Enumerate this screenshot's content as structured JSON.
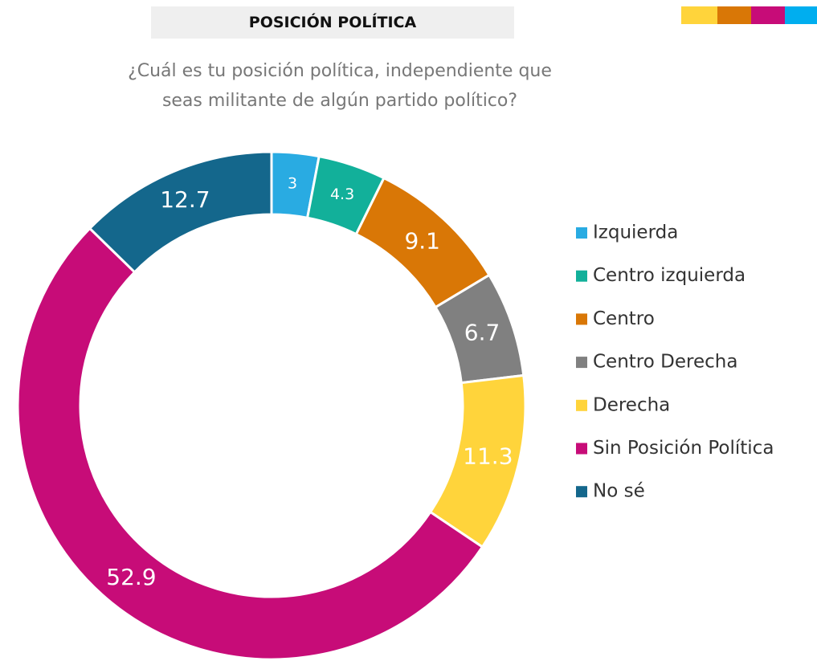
{
  "chart_data": {
    "type": "pie",
    "title": "POSICIÓN POLÍTICA",
    "subtitle": "¿Cuál es tu posición política, independiente que seas militante de algún partido político?",
    "categories": [
      "Izquierda",
      "Centro izquierda",
      "Centro",
      "Centro Derecha",
      "Derecha",
      "Sin Posición Política",
      "No sé"
    ],
    "values": [
      3,
      4.3,
      9.1,
      6.7,
      11.3,
      52.9,
      12.7
    ],
    "colors": [
      "#29abe2",
      "#12b09a",
      "#d97706",
      "#808080",
      "#ffd43b",
      "#c70c78",
      "#14678c"
    ],
    "donut": true,
    "legend": "right"
  }
}
